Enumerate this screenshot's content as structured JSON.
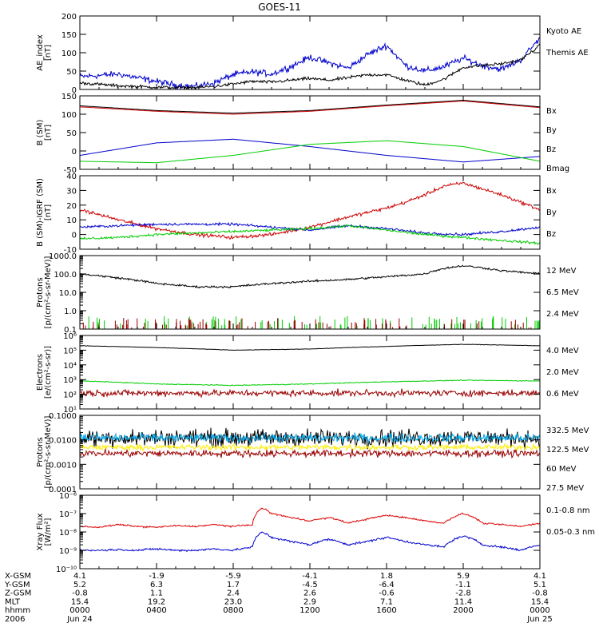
{
  "title": "GOES-11",
  "chart_data": [
    {
      "type": "line",
      "ylabel": "AE_index [nT]",
      "ylim": [
        0,
        200
      ],
      "log": false,
      "yticks": [
        0,
        50,
        100,
        150,
        200
      ],
      "yticklabels": [
        "0",
        "50",
        "100",
        "150",
        "200"
      ],
      "legend": [
        {
          "name": "Kyoto AE",
          "color": "#0000cc"
        },
        {
          "name": "Themis AE",
          "color": "#000000"
        }
      ],
      "series": [
        {
          "name": "Kyoto AE",
          "color": "#0000cc",
          "noise": 6,
          "x": [
            0,
            1,
            2,
            3,
            4,
            5,
            6,
            7,
            8,
            9,
            10,
            11,
            12,
            13,
            14,
            15,
            16,
            17,
            18,
            19,
            20,
            21,
            22,
            23,
            24
          ],
          "y": [
            35,
            38,
            42,
            32,
            22,
            12,
            8,
            18,
            40,
            48,
            42,
            62,
            88,
            72,
            58,
            95,
            120,
            65,
            50,
            62,
            85,
            65,
            55,
            80,
            140
          ]
        },
        {
          "name": "Themis AE",
          "color": "#000000",
          "noise": 3,
          "x": [
            0,
            1,
            2,
            3,
            4,
            5,
            6,
            7,
            8,
            9,
            10,
            11,
            12,
            13,
            14,
            15,
            16,
            17,
            18,
            19,
            20,
            21,
            22,
            23,
            24
          ],
          "y": [
            18,
            14,
            10,
            8,
            6,
            5,
            5,
            8,
            15,
            22,
            20,
            25,
            30,
            25,
            32,
            40,
            40,
            25,
            12,
            28,
            60,
            65,
            70,
            80,
            120
          ]
        }
      ]
    },
    {
      "type": "line",
      "ylabel": "B (SM) [nT]",
      "ylim": [
        -50,
        150
      ],
      "log": false,
      "yticks": [
        -50,
        0,
        50,
        100,
        150
      ],
      "yticklabels": [
        "-50",
        "0",
        "50",
        "100",
        "150"
      ],
      "legend": [
        {
          "name": "Bx",
          "color": "#0000cc"
        },
        {
          "name": "By",
          "color": "#00cc00"
        },
        {
          "name": "Bz",
          "color": "#cc0000"
        },
        {
          "name": "Bmag",
          "color": "#000000"
        }
      ],
      "series": [
        {
          "name": "Bmag",
          "color": "#000000",
          "noise": 0,
          "x": [
            0,
            4,
            8,
            12,
            16,
            20,
            24
          ],
          "y": [
            123,
            110,
            103,
            110,
            125,
            138,
            120
          ]
        },
        {
          "name": "Bz",
          "color": "#cc0000",
          "noise": 0,
          "x": [
            0,
            4,
            8,
            12,
            16,
            20,
            24
          ],
          "y": [
            120,
            108,
            100,
            108,
            123,
            136,
            118
          ]
        },
        {
          "name": "Bx",
          "color": "#0000cc",
          "noise": 0,
          "x": [
            0,
            4,
            8,
            12,
            16,
            20,
            24
          ],
          "y": [
            -12,
            22,
            32,
            12,
            -12,
            -30,
            -15
          ]
        },
        {
          "name": "By",
          "color": "#00cc00",
          "noise": 0,
          "x": [
            0,
            4,
            8,
            12,
            16,
            20,
            24
          ],
          "y": [
            -28,
            -32,
            -12,
            18,
            28,
            12,
            -28
          ]
        }
      ]
    },
    {
      "type": "line",
      "ylabel": "B (SM)-IGRF (SM) [nT]",
      "ylim": [
        -10,
        40
      ],
      "log": false,
      "yticks": [
        -10,
        0,
        10,
        20,
        30,
        40
      ],
      "yticklabels": [
        "-10",
        "0",
        "10",
        "20",
        "30",
        "40"
      ],
      "legend": [
        {
          "name": "Bx",
          "color": "#0000cc"
        },
        {
          "name": "By",
          "color": "#00cc00"
        },
        {
          "name": "Bz",
          "color": "#cc0000"
        }
      ],
      "series": [
        {
          "name": "Bz",
          "color": "#cc0000",
          "noise": 0.8,
          "x": [
            0,
            2,
            4,
            6,
            8,
            10,
            12,
            14,
            16,
            17,
            18,
            19,
            20,
            22,
            24
          ],
          "y": [
            17,
            10,
            4,
            0,
            -2,
            0,
            5,
            12,
            18,
            22,
            27,
            33,
            35,
            27,
            17
          ]
        },
        {
          "name": "Bx",
          "color": "#0000cc",
          "noise": 0.6,
          "x": [
            0,
            2,
            4,
            6,
            8,
            10,
            12,
            14,
            16,
            18,
            20,
            22,
            24
          ],
          "y": [
            5,
            6,
            7,
            7,
            7,
            5,
            3,
            6,
            4,
            1,
            0,
            2,
            5
          ]
        },
        {
          "name": "By",
          "color": "#00cc00",
          "noise": 0.6,
          "x": [
            0,
            2,
            4,
            6,
            8,
            10,
            12,
            14,
            16,
            18,
            20,
            22,
            24
          ],
          "y": [
            -3,
            -2,
            0,
            1,
            2,
            3,
            4,
            6,
            3,
            0,
            -2,
            -4,
            -6
          ]
        }
      ]
    },
    {
      "type": "line",
      "ylabel": "Protons [p/(cm²-s-sr-MeV)]",
      "ylim": [
        0.1,
        1000
      ],
      "log": true,
      "yticks": [
        0.1,
        1,
        10,
        100,
        1000
      ],
      "yticklabels": [
        "0.1",
        "1.0",
        "10.0",
        "100.0",
        "1000.0"
      ],
      "legend": [
        {
          "name": "12 MeV",
          "color": "#990000"
        },
        {
          "name": "6.5 MeV",
          "color": "#00cc00"
        },
        {
          "name": "2.4 MeV",
          "color": "#000000"
        }
      ],
      "series": [
        {
          "name": "2.4 MeV",
          "color": "#000000",
          "noise": 0.04,
          "x": [
            0,
            2,
            4,
            6,
            8,
            10,
            12,
            14,
            16,
            18,
            19,
            20,
            22,
            24
          ],
          "y": [
            100,
            60,
            30,
            20,
            20,
            30,
            40,
            50,
            70,
            100,
            200,
            280,
            150,
            100
          ]
        },
        {
          "name": "6.5 MeV",
          "style": "spikes",
          "color": "#00cc00",
          "x": [
            0,
            24
          ],
          "y": [
            0.15,
            0.15
          ]
        },
        {
          "name": "12 MeV",
          "style": "spikes",
          "color": "#990000",
          "x": [
            0,
            24
          ],
          "y": [
            0.12,
            0.12
          ]
        }
      ]
    },
    {
      "type": "line",
      "ylabel": "Electrons [e/(cm²-s-sr)]",
      "ylim": [
        10,
        1000000
      ],
      "log": true,
      "yticks": [
        10,
        100,
        1000,
        10000,
        100000,
        1000000
      ],
      "yticklabels": [
        "10¹",
        "10²",
        "10³",
        "10⁴",
        "10⁵",
        "10⁶"
      ],
      "legend": [
        {
          "name": "4.0 MeV",
          "color": "#990000"
        },
        {
          "name": "2.0 MeV",
          "color": "#00cc00"
        },
        {
          "name": "0.6 MeV",
          "color": "#000000"
        }
      ],
      "series": [
        {
          "name": "0.6 MeV",
          "color": "#000000",
          "noise": 0.01,
          "x": [
            0,
            4,
            8,
            12,
            16,
            20,
            24
          ],
          "y": [
            200000,
            150000,
            100000,
            120000,
            180000,
            250000,
            200000
          ]
        },
        {
          "name": "2.0 MeV",
          "color": "#00cc00",
          "noise": 0.02,
          "x": [
            0,
            4,
            8,
            12,
            16,
            20,
            24
          ],
          "y": [
            800,
            500,
            400,
            500,
            700,
            900,
            800
          ]
        },
        {
          "name": "4.0 MeV",
          "color": "#990000",
          "noise": 0.15,
          "x": [
            0,
            24
          ],
          "y": [
            120,
            120
          ]
        }
      ]
    },
    {
      "type": "line",
      "ylabel": "Protons [p/(cm²-s-sr-MeV)]",
      "ylim": [
        0.0001,
        0.1
      ],
      "log": true,
      "yticks": [
        0.0001,
        0.001,
        0.01,
        0.1
      ],
      "yticklabels": [
        "0.0001",
        "0.0010",
        "0.0100",
        "0.1000"
      ],
      "legend": [
        {
          "name": "332.5 MeV",
          "color": "#990000"
        },
        {
          "name": "122.5 MeV",
          "color": "#ffee00"
        },
        {
          "name": "60 MeV",
          "color": "#00aaee"
        },
        {
          "name": "27.5 MeV",
          "color": "#000000"
        }
      ],
      "series": [
        {
          "name": "27.5 MeV",
          "color": "#000000",
          "noise": 0.25,
          "x": [
            0,
            24
          ],
          "y": [
            0.012,
            0.012
          ]
        },
        {
          "name": "60 MeV",
          "color": "#00aaee",
          "noise": 0.12,
          "x": [
            0,
            24
          ],
          "y": [
            0.012,
            0.012
          ]
        },
        {
          "name": "122.5 MeV",
          "color": "#ffee00",
          "noise": 0.08,
          "x": [
            0,
            24
          ],
          "y": [
            0.005,
            0.005
          ]
        },
        {
          "name": "332.5 MeV",
          "color": "#990000",
          "noise": 0.1,
          "x": [
            0,
            24
          ],
          "y": [
            0.0028,
            0.0028
          ]
        }
      ]
    },
    {
      "type": "line",
      "ylabel": "Xray Flux [W/m²]",
      "ylim": [
        1e-10,
        1e-06
      ],
      "log": true,
      "yticks": [
        1e-10,
        1e-09,
        1e-08,
        1e-07,
        1e-06
      ],
      "yticklabels": [
        "10⁻¹⁰",
        "10⁻⁹",
        "10⁻⁸",
        "10⁻⁷",
        "10⁻⁶"
      ],
      "legend": [
        {
          "name": "0.1-0.8 nm",
          "color": "#dd0000"
        },
        {
          "name": "0.05-0.3 nm",
          "color": "#0000cc"
        }
      ],
      "series": [
        {
          "name": "0.1-0.8 nm",
          "color": "#dd0000",
          "noise": 0.03,
          "x": [
            0,
            1,
            2,
            3,
            4,
            5,
            6,
            7,
            8,
            9,
            9.5,
            10,
            11,
            12,
            13,
            14,
            15,
            16,
            17,
            18,
            19,
            20,
            21,
            22,
            23,
            24
          ],
          "y": [
            2e-08,
            1.8e-08,
            2.5e-08,
            2e-08,
            1.8e-08,
            2.2e-08,
            2e-08,
            2.5e-08,
            2e-08,
            2.5e-08,
            2e-07,
            1e-07,
            6e-08,
            4e-08,
            6e-08,
            3e-08,
            5e-08,
            8e-08,
            6e-08,
            4e-08,
            3e-08,
            1e-07,
            3e-08,
            2.5e-08,
            2e-08,
            3e-08
          ]
        },
        {
          "name": "0.05-0.3 nm",
          "color": "#0000cc",
          "noise": 0.04,
          "x": [
            0,
            1,
            2,
            3,
            4,
            5,
            6,
            7,
            8,
            9,
            9.5,
            10,
            11,
            12,
            13,
            14,
            15,
            16,
            17,
            18,
            19,
            20,
            21,
            22,
            23,
            24
          ],
          "y": [
            1e-09,
            1e-09,
            1.1e-09,
            1e-09,
            1.2e-09,
            1e-09,
            1e-09,
            1.2e-09,
            1e-09,
            1.5e-09,
            1e-08,
            5e-09,
            3e-09,
            2e-09,
            4e-09,
            2e-09,
            3e-09,
            5e-09,
            3e-09,
            2e-09,
            1.5e-09,
            6e-09,
            2e-09,
            1.5e-09,
            1e-09,
            2e-09
          ]
        }
      ]
    }
  ],
  "x_axis": {
    "xlim": [
      0,
      24
    ],
    "ticks": [
      0,
      4,
      8,
      12,
      16,
      20,
      24
    ],
    "row_labels": [
      "X-GSM",
      "Y-GSM",
      "Z-GSM",
      "MLT",
      "hhmm",
      "2006"
    ],
    "columns": [
      [
        "4.1",
        "5.2",
        "-0.8",
        "15.4",
        "0000",
        "Jun 24"
      ],
      [
        "-1.9",
        "6.3",
        "1.1",
        "19.2",
        "0400",
        ""
      ],
      [
        "-5.9",
        "1.7",
        "2.4",
        "23.0",
        "0800",
        ""
      ],
      [
        "-4.1",
        "-4.5",
        "2.6",
        "2.9",
        "1200",
        ""
      ],
      [
        "1.8",
        "-6.4",
        "-0.6",
        "7.1",
        "1600",
        ""
      ],
      [
        "5.9",
        "-1.1",
        "-2.8",
        "11.4",
        "2000",
        ""
      ],
      [
        "4.1",
        "5.1",
        "-0.8",
        "15.4",
        "0000",
        "Jun 25"
      ]
    ]
  }
}
